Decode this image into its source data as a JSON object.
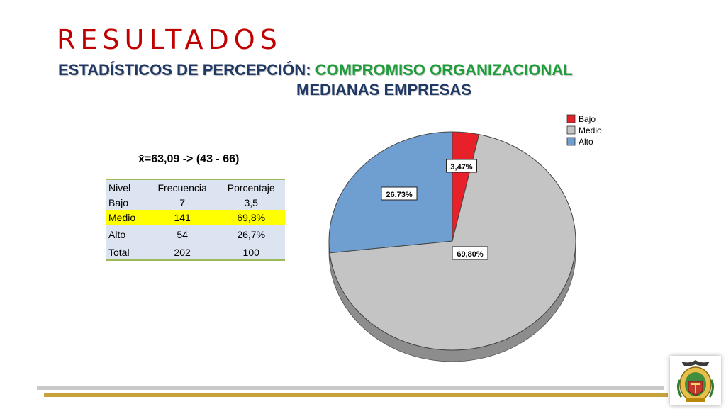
{
  "slide": {
    "title": "RESULTADOS",
    "subtitle_part1": "ESTADÍSTICOS DE PERCEPCIÓN:",
    "subtitle_part2": "COMPROMISO ORGANIZACIONAL",
    "subtitle_line2": "MEDIANAS EMPRESAS",
    "mean_text": "x̄=63,09 -> (43 - 66)"
  },
  "table": {
    "headers": [
      "Nivel",
      "Frecuencia",
      "Porcentaje"
    ],
    "rows": [
      [
        "Bajo",
        "7",
        "3,5"
      ],
      [
        "Medio",
        "141",
        "69,8%"
      ],
      [
        "Alto",
        "54",
        "26,7%"
      ],
      [
        "Total",
        "202",
        "100"
      ]
    ]
  },
  "chart_data": {
    "type": "pie",
    "title": "",
    "categories": [
      "Bajo",
      "Medio",
      "Alto"
    ],
    "values": [
      3.47,
      69.8,
      26.73
    ],
    "labels": [
      "3,47%",
      "69,80%",
      "26,73%"
    ],
    "colors": [
      "#e8202a",
      "#c4c4c4",
      "#6f9ed0"
    ],
    "legend_position": "top-right",
    "style": "3d"
  },
  "colors": {
    "title": "#c00000",
    "subtitle": "#1f3864",
    "highlight": "#1f9d3a",
    "row_highlight": "#ffff00",
    "table_bg": "#dbe4f0"
  }
}
